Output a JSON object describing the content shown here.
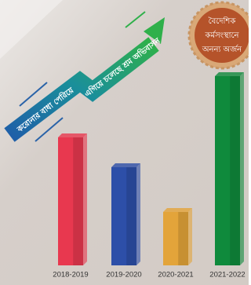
{
  "chart_data": {
    "type": "bar",
    "arrow_texts": [
      "করোনার বাধা পেরিয়ে",
      "এগিয়ে চলেছে শ্রম অভিবাসন"
    ],
    "badge_lines": [
      "বৈদেশিক",
      "কর্মসংস্থানে",
      "অনন্য অর্জন"
    ],
    "categories": [
      "2018-2019",
      "2019-2020",
      "2020-2021",
      "2021-2022"
    ],
    "values": [
      163,
      125,
      68,
      241
    ],
    "colors": [
      "#e8384f",
      "#2d4fa8",
      "#e3a43a",
      "#0f8a3c"
    ]
  }
}
